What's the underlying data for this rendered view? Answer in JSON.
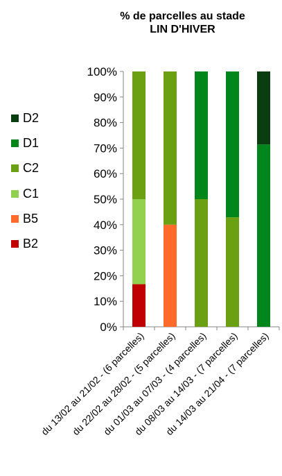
{
  "chart_data": {
    "type": "bar",
    "stacked": "percent",
    "title": [
      "% de parcelles au stade",
      "LIN D'HIVER"
    ],
    "categories": [
      "du 13/02 au 21/02 - (6 parcelles)",
      "du 22/02 au 28/02 - (5 parcelles)",
      "du 01/03 au 07/03 - (4 parcelles)",
      "du 08/03 au 14/03 - (7 parcelles)",
      "du 14/03 au 21/04 - (7 parcelles)"
    ],
    "ylim": [
      0,
      100
    ],
    "yticks": [
      "0%",
      "10%",
      "20%",
      "30%",
      "40%",
      "50%",
      "60%",
      "70%",
      "80%",
      "90%",
      "100%"
    ],
    "series": [
      {
        "name": "B2",
        "color": "#C00000",
        "values": [
          16.7,
          0,
          0,
          0,
          0
        ]
      },
      {
        "name": "B5",
        "color": "#FF6A2A",
        "values": [
          0,
          40,
          0,
          0,
          0
        ]
      },
      {
        "name": "C1",
        "color": "#92D050",
        "values": [
          33.3,
          0,
          0,
          0,
          0
        ]
      },
      {
        "name": "C2",
        "color": "#6AA012",
        "values": [
          50,
          60,
          50,
          42.9,
          0
        ]
      },
      {
        "name": "D1",
        "color": "#00861B",
        "values": [
          0,
          0,
          50,
          57.1,
          71.4
        ]
      },
      {
        "name": "D2",
        "color": "#0A3D12",
        "values": [
          0,
          0,
          0,
          0,
          28.6
        ]
      }
    ],
    "legend_position": "left",
    "grid": false
  }
}
